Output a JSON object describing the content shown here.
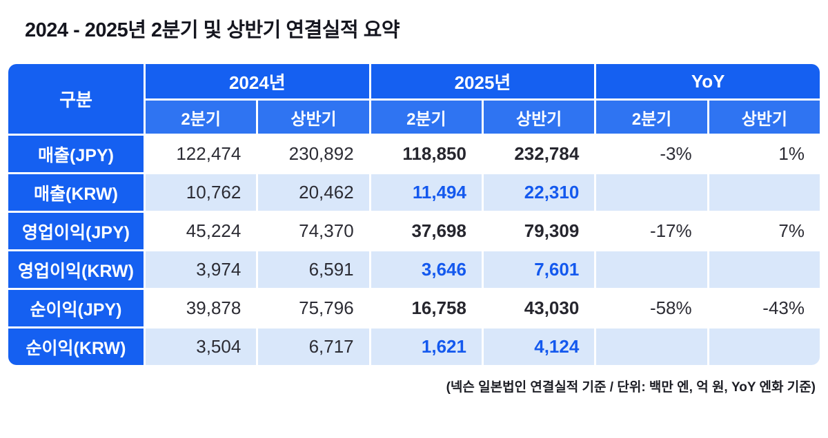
{
  "title": "2024 - 2025년 2분기 및 상반기 연결실적 요약",
  "footnote": "(넥슨 일본법인 연결실적 기준 / 단위: 백만 엔, 억 원, YoY 엔화 기준)",
  "colors": {
    "header_blue": "#1560f1",
    "subheader_blue": "#2f74f2",
    "alt_row_bg": "#d9e7fa",
    "accent_blue_text": "#1459ee",
    "dark_text": "#2c2c34"
  },
  "chart_data": {
    "type": "table",
    "corner_label": "구분",
    "column_groups": [
      {
        "label": "2024년",
        "sub": [
          "2분기",
          "상반기"
        ]
      },
      {
        "label": "2025년",
        "sub": [
          "2분기",
          "상반기"
        ]
      },
      {
        "label": "YoY",
        "sub": [
          "2분기",
          "상반기"
        ]
      }
    ],
    "rows": [
      {
        "label": "매출(JPY)",
        "values": [
          "122,474",
          "230,892",
          "118,850",
          "232,784",
          "-3%",
          "1%"
        ]
      },
      {
        "label": "매출(KRW)",
        "values": [
          "10,762",
          "20,462",
          "11,494",
          "22,310",
          "",
          ""
        ]
      },
      {
        "label": "영업이익(JPY)",
        "values": [
          "45,224",
          "74,370",
          "37,698",
          "79,309",
          "-17%",
          "7%"
        ]
      },
      {
        "label": "영업이익(KRW)",
        "values": [
          "3,974",
          "6,591",
          "3,646",
          "7,601",
          "",
          ""
        ]
      },
      {
        "label": "순이익(JPY)",
        "values": [
          "39,878",
          "75,796",
          "16,758",
          "43,030",
          "-58%",
          "-43%"
        ]
      },
      {
        "label": "순이익(KRW)",
        "values": [
          "3,504",
          "6,717",
          "1,621",
          "4,124",
          "",
          ""
        ]
      }
    ]
  }
}
